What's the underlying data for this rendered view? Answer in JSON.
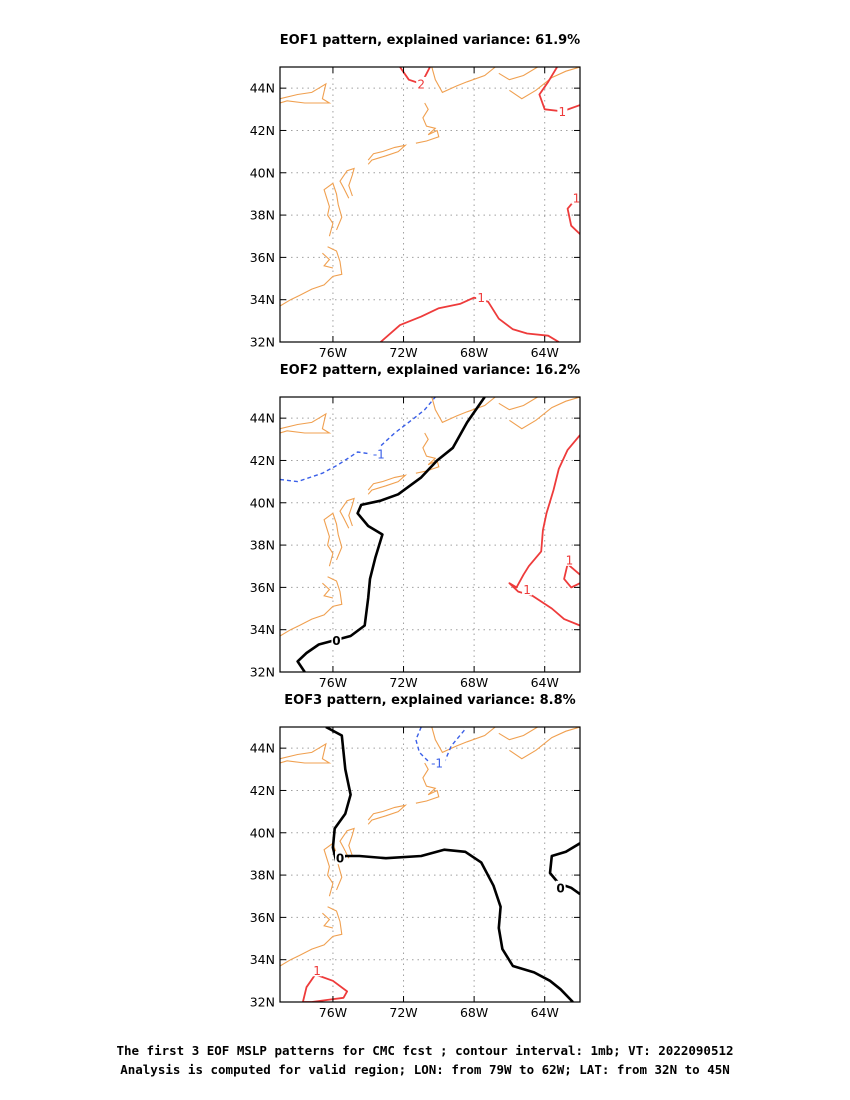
{
  "map": {
    "lon_range": [
      -79,
      -62
    ],
    "lat_range": [
      32,
      45
    ],
    "xticks": [
      -76,
      -72,
      -68,
      -64
    ],
    "xtick_labels": [
      "76W",
      "72W",
      "68W",
      "64W"
    ],
    "yticks": [
      32,
      34,
      36,
      38,
      40,
      42,
      44
    ],
    "ytick_labels": [
      "32N",
      "34N",
      "36N",
      "38N",
      "40N",
      "42N",
      "44N"
    ],
    "grid": true,
    "coastline_color": "#f0a050"
  },
  "panels": [
    {
      "title": "EOF1 pattern, explained variance: 61.9%",
      "contours": [
        {
          "level": 2,
          "label": "2",
          "color": "#ee3b3b",
          "style": "solid",
          "lons": [
            -72.2,
            -71.7,
            -71.0,
            -70.5
          ],
          "lats": [
            45,
            44.4,
            44.2,
            45
          ],
          "label_at": [
            -71.0,
            44.2
          ]
        },
        {
          "level": 1,
          "label": "1",
          "color": "#ee3b3b",
          "style": "solid",
          "lons": [
            -63.3,
            -63.8,
            -64.3,
            -64.0,
            -63.0,
            -62.0
          ],
          "lats": [
            45,
            44.3,
            43.7,
            43.0,
            42.9,
            43.2
          ],
          "label_at": [
            -63.0,
            42.9
          ]
        },
        {
          "level": 1,
          "label": "1",
          "color": "#ee3b3b",
          "style": "solid",
          "lons": [
            -62.0,
            -62.7,
            -62.5,
            -62.0
          ],
          "lats": [
            39.0,
            38.3,
            37.5,
            37.1
          ],
          "label_at": [
            -62.2,
            38.8
          ]
        },
        {
          "level": 1,
          "label": "1",
          "color": "#ee3b3b",
          "style": "solid",
          "lons": [
            -73.3,
            -72.2,
            -71.0,
            -70.0,
            -68.8,
            -68.0,
            -67.2,
            -66.6,
            -65.8,
            -65.0,
            -63.8,
            -63.2
          ],
          "lats": [
            32,
            32.8,
            33.2,
            33.6,
            33.8,
            34.1,
            33.9,
            33.1,
            32.6,
            32.4,
            32.3,
            32
          ],
          "label_at": [
            -67.6,
            34.1
          ]
        }
      ]
    },
    {
      "title": "EOF2 pattern, explained variance: 16.2%",
      "contours": [
        {
          "level": -1,
          "label": "-1",
          "color": "#3a5fe8",
          "style": "dashed",
          "lons": [
            -79,
            -78,
            -76.6,
            -75.7,
            -74.6,
            -73.8,
            -72.5,
            -71.4,
            -70.8,
            -70.2
          ],
          "lats": [
            41.1,
            41.0,
            41.4,
            41.8,
            42.4,
            42.3,
            43.3,
            44.0,
            44.4,
            45
          ],
          "label_at": [
            -73.4,
            42.3
          ]
        },
        {
          "level": 0,
          "label": "0",
          "color": "#000000",
          "style": "bold",
          "lons": [
            -67.4,
            -68.4,
            -69.2,
            -70.1,
            -71.0,
            -72.3,
            -73.3,
            -74.4,
            -74.6,
            -74.0,
            -73.2,
            -73.6,
            -73.9,
            -74.0,
            -74.2,
            -75.0,
            -75.9,
            -76.8,
            -77.5,
            -78.0,
            -77.6
          ],
          "lats": [
            45,
            43.8,
            42.6,
            42.0,
            41.2,
            40.4,
            40.1,
            39.9,
            39.5,
            38.9,
            38.5,
            37.4,
            36.4,
            35.5,
            34.2,
            33.7,
            33.5,
            33.3,
            32.9,
            32.5,
            32
          ],
          "label_at": [
            -75.8,
            33.5
          ]
        },
        {
          "level": 1,
          "label": "1",
          "color": "#ee3b3b",
          "style": "solid",
          "lons": [
            -62.0,
            -62.7,
            -63.2,
            -63.5,
            -63.9,
            -64.1,
            -64.2,
            -64.9,
            -65.2,
            -65.6,
            -66.0,
            -65.5,
            -64.7,
            -63.6,
            -62.9,
            -62.0
          ],
          "lats": [
            43.2,
            42.5,
            41.6,
            40.6,
            39.5,
            38.7,
            37.7,
            37.0,
            36.6,
            36.0,
            36.2,
            35.8,
            35.6,
            35.0,
            34.5,
            34.2
          ],
          "label_at": [
            -65.0,
            35.9
          ]
        },
        {
          "level": 1,
          "label": "1",
          "color": "#ee3b3b",
          "style": "solid",
          "lons": [
            -62.0,
            -62.7,
            -62.9,
            -62.5,
            -62.0
          ],
          "lats": [
            36.6,
            37.1,
            36.4,
            36.0,
            36.2
          ],
          "label_at": [
            -62.6,
            37.3
          ]
        }
      ]
    },
    {
      "title": "EOF3 pattern, explained variance: 8.8%",
      "contours": [
        {
          "level": -1,
          "label": "-1",
          "color": "#3a5fe8",
          "style": "dashed",
          "lons": [
            -71.0,
            -71.3,
            -71.1,
            -70.5,
            -69.7,
            -69.3,
            -68.5
          ],
          "lats": [
            45,
            44.4,
            43.8,
            43.3,
            43.3,
            44.1,
            44.9
          ],
          "label_at": [
            -70.1,
            43.3
          ]
        },
        {
          "level": 0,
          "label": "0",
          "color": "#000000",
          "style": "bold",
          "lons": [
            -76.4,
            -75.5,
            -75.3,
            -75.0,
            -75.3,
            -75.9,
            -76.0,
            -75.8,
            -75.3,
            -74.5,
            -73.0,
            -71.0,
            -69.7,
            -68.5,
            -67.6,
            -66.9,
            -66.5,
            -66.6,
            -66.4,
            -65.8,
            -64.6,
            -63.7,
            -63.1,
            -62.4
          ],
          "lats": [
            45,
            44.6,
            43.0,
            41.8,
            40.9,
            40.2,
            39.3,
            38.6,
            38.9,
            38.9,
            38.8,
            38.9,
            39.2,
            39.1,
            38.6,
            37.5,
            36.5,
            35.5,
            34.5,
            33.7,
            33.4,
            33.0,
            32.6,
            32
          ],
          "label_at": [
            -75.6,
            38.8
          ]
        },
        {
          "level": 0,
          "label": "0",
          "color": "#000000",
          "style": "bold",
          "lons": [
            -62.0,
            -62.8,
            -63.6,
            -63.7,
            -63.2,
            -62.5,
            -62.0
          ],
          "lats": [
            39.5,
            39.1,
            38.9,
            38.1,
            37.6,
            37.4,
            37.1
          ],
          "label_at": [
            -63.1,
            37.4
          ]
        },
        {
          "level": 1,
          "label": "1",
          "color": "#ee3b3b",
          "style": "solid",
          "lons": [
            -77.7,
            -77.5,
            -77.0,
            -76.0,
            -75.2,
            -75.4,
            -76.3,
            -77.2,
            -77.7
          ],
          "lats": [
            32.0,
            32.7,
            33.3,
            33.0,
            32.5,
            32.2,
            32.1,
            32.0,
            32.0
          ],
          "label_at": [
            -76.9,
            33.5
          ]
        }
      ]
    }
  ],
  "footer": {
    "line1": "The first 3 EOF MSLP patterns for CMC fcst ; contour interval: 1mb; VT: 2022090512",
    "line2": "Analysis is computed for valid region; LON: from 79W to 62W; LAT: from 32N to 45N"
  }
}
